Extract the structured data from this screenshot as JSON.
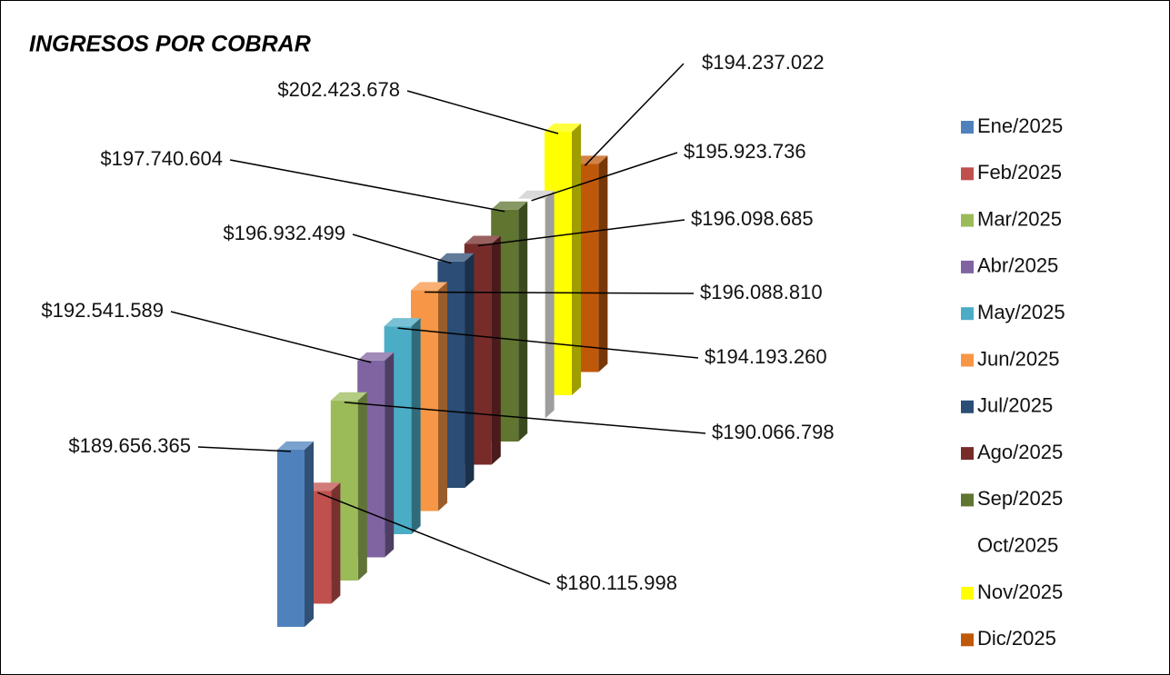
{
  "chart_data": {
    "type": "bar3d",
    "title": "INGRESOS POR COBRAR",
    "categories": [
      "Ene/2025",
      "Feb/2025",
      "Mar/2025",
      "Abr/2025",
      "May/2025",
      "Jun/2025",
      "Jul/2025",
      "Ago/2025",
      "Sep/2025",
      "Oct/2025",
      "Nov/2025",
      "Dic/2025"
    ],
    "values": [
      189656365,
      180115998,
      190066798,
      192541589,
      194193260,
      196088810,
      196932499,
      196098685,
      197740604,
      195923736,
      202423678,
      194237022
    ],
    "value_labels": [
      "$189.656.365",
      "$180.115.998",
      "$190.066.798",
      "$192.541.589",
      "$194.193.260",
      "$196.088.810",
      "$196.932.499",
      "$196.098.685",
      "$197.740.604",
      "$195.923.736",
      "$202.423.678",
      "$194.237.022"
    ],
    "colors": [
      "#4f81bd",
      "#c0504d",
      "#9bbb59",
      "#8064a2",
      "#4bacc6",
      "#f79646",
      "#2c4d75",
      "#772c2a",
      "#5f7530",
      "#ffffff",
      "#ffff00",
      "#c0580a"
    ],
    "legend": "right"
  }
}
